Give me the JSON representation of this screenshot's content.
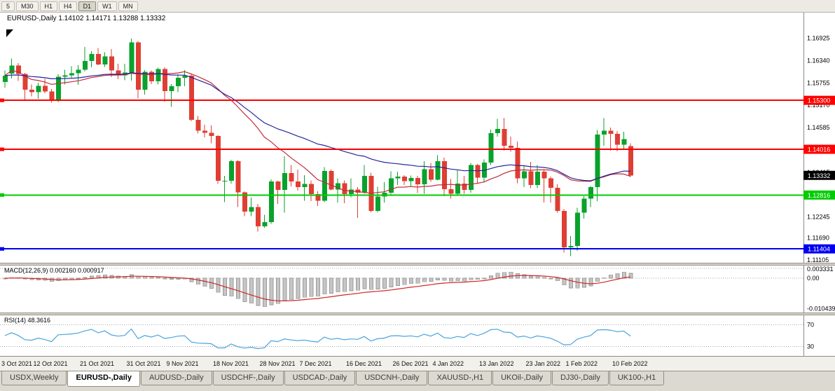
{
  "toolbar": {
    "timeframes": [
      "5",
      "M30",
      "H1",
      "H4",
      "D1",
      "W1",
      "MN"
    ],
    "active": "D1"
  },
  "chart_data": {
    "type": "candlestick",
    "title": "EURUSD-,Daily",
    "ohlc_text": "1.14102 1.14171 1.13288 1.13332",
    "up_color": "#09a22c",
    "down_color": "#df3e33",
    "ma_fast": {
      "period": 20,
      "color": "#c22b3a"
    },
    "ma_slow": {
      "period": 40,
      "color": "#24249e"
    },
    "ylim": [
      1.1104,
      1.176
    ],
    "yticks": [
      {
        "price": 1.16925,
        "label": "1.16925"
      },
      {
        "price": 1.1634,
        "label": "1.16340"
      },
      {
        "price": 1.15755,
        "label": "1.15755"
      },
      {
        "price": 1.1517,
        "label": "1.15170"
      },
      {
        "price": 1.14585,
        "label": "1.14585"
      },
      {
        "price": 1.14,
        "label": "1.14000"
      },
      {
        "price": 1.13415,
        "label": "1.13415"
      },
      {
        "price": 1.1283,
        "label": "1.12830"
      },
      {
        "price": 1.12245,
        "label": "1.12245"
      },
      {
        "price": 1.1169,
        "label": "1.11690"
      },
      {
        "price": 1.11105,
        "label": "1.11105"
      }
    ],
    "hlines": [
      {
        "price": 1.153,
        "label": "1.15300",
        "color": "#fe0000",
        "width": 2
      },
      {
        "price": 1.14016,
        "label": "1.14016",
        "color": "#fe0000",
        "width": 2
      },
      {
        "price": 1.12816,
        "label": "1.12816",
        "color": "#00cc00",
        "width": 2
      },
      {
        "price": 1.11404,
        "label": "1.11404",
        "color": "#0000f0",
        "width": 2
      }
    ],
    "price_badge": {
      "price": 1.13332,
      "label": "1.13332",
      "bg": "#000000"
    },
    "candles": [
      [
        1.1578,
        1.1608,
        1.1563,
        1.1595
      ],
      [
        1.16,
        1.164,
        1.1587,
        1.1621
      ],
      [
        1.1621,
        1.1628,
        1.1581,
        1.1599
      ],
      [
        1.1599,
        1.1602,
        1.1529,
        1.1558
      ],
      [
        1.1558,
        1.1572,
        1.154,
        1.1551
      ],
      [
        1.1551,
        1.1576,
        1.1534,
        1.1568
      ],
      [
        1.1568,
        1.1586,
        1.1549,
        1.1553
      ],
      [
        1.1553,
        1.156,
        1.1524,
        1.153
      ],
      [
        1.153,
        1.1598,
        1.1525,
        1.1592
      ],
      [
        1.1592,
        1.161,
        1.1572,
        1.1596
      ],
      [
        1.1596,
        1.1619,
        1.1588,
        1.1601
      ],
      [
        1.1601,
        1.1622,
        1.1571,
        1.161
      ],
      [
        1.161,
        1.167,
        1.1606,
        1.1633
      ],
      [
        1.1633,
        1.1659,
        1.1617,
        1.1652
      ],
      [
        1.1652,
        1.1667,
        1.1622,
        1.1624
      ],
      [
        1.1624,
        1.1656,
        1.1618,
        1.1645
      ],
      [
        1.1645,
        1.1664,
        1.1591,
        1.1608
      ],
      [
        1.1608,
        1.1626,
        1.1585,
        1.1596
      ],
      [
        1.1596,
        1.1626,
        1.1583,
        1.1603
      ],
      [
        1.1603,
        1.1692,
        1.1582,
        1.1682
      ],
      [
        1.1682,
        1.1686,
        1.1535,
        1.1558
      ],
      [
        1.1558,
        1.1609,
        1.1545,
        1.1605
      ],
      [
        1.1605,
        1.1608,
        1.1573,
        1.158
      ],
      [
        1.158,
        1.1616,
        1.1572,
        1.1612
      ],
      [
        1.1612,
        1.1617,
        1.1527,
        1.1554
      ],
      [
        1.1554,
        1.1573,
        1.1513,
        1.1567
      ],
      [
        1.1567,
        1.1598,
        1.1551,
        1.1589
      ],
      [
        1.1589,
        1.1609,
        1.1567,
        1.1595
      ],
      [
        1.1595,
        1.1598,
        1.1475,
        1.1479
      ],
      [
        1.1479,
        1.1489,
        1.1443,
        1.145
      ],
      [
        1.145,
        1.1466,
        1.1433,
        1.1445
      ],
      [
        1.1445,
        1.1464,
        1.1417,
        1.1437
      ],
      [
        1.1437,
        1.1438,
        1.1311,
        1.1319
      ],
      [
        1.1319,
        1.1332,
        1.1263,
        1.1319
      ],
      [
        1.1319,
        1.1374,
        1.1312,
        1.137
      ],
      [
        1.137,
        1.1373,
        1.125,
        1.1289
      ],
      [
        1.1289,
        1.1291,
        1.1226,
        1.1238
      ],
      [
        1.1238,
        1.1275,
        1.1226,
        1.125
      ],
      [
        1.125,
        1.1258,
        1.1186,
        1.12
      ],
      [
        1.12,
        1.123,
        1.1196,
        1.1211
      ],
      [
        1.1211,
        1.1323,
        1.1206,
        1.1317
      ],
      [
        1.1317,
        1.1319,
        1.1258,
        1.1295
      ],
      [
        1.1295,
        1.1383,
        1.1235,
        1.1339
      ],
      [
        1.1339,
        1.136,
        1.1304,
        1.1317
      ],
      [
        1.1317,
        1.1348,
        1.1293,
        1.1302
      ],
      [
        1.1302,
        1.1334,
        1.1267,
        1.1311
      ],
      [
        1.1311,
        1.132,
        1.1266,
        1.1284
      ],
      [
        1.1284,
        1.1291,
        1.1253,
        1.1267
      ],
      [
        1.1267,
        1.1355,
        1.1263,
        1.1345
      ],
      [
        1.1345,
        1.1348,
        1.1294,
        1.1296
      ],
      [
        1.1296,
        1.1325,
        1.1262,
        1.1313
      ],
      [
        1.1313,
        1.132,
        1.126,
        1.1284
      ],
      [
        1.1284,
        1.1325,
        1.1276,
        1.1296
      ],
      [
        1.1296,
        1.1302,
        1.1222,
        1.1288
      ],
      [
        1.1288,
        1.136,
        1.1285,
        1.1332
      ],
      [
        1.1332,
        1.134,
        1.1236,
        1.124
      ],
      [
        1.124,
        1.1303,
        1.1236,
        1.1278
      ],
      [
        1.1278,
        1.1315,
        1.1262,
        1.1288
      ],
      [
        1.1288,
        1.1344,
        1.1282,
        1.1325
      ],
      [
        1.1325,
        1.1343,
        1.1308,
        1.133
      ],
      [
        1.133,
        1.1334,
        1.1308,
        1.1318
      ],
      [
        1.1318,
        1.1333,
        1.1304,
        1.1326
      ],
      [
        1.1326,
        1.1332,
        1.1287,
        1.131
      ],
      [
        1.131,
        1.137,
        1.1285,
        1.1349
      ],
      [
        1.1349,
        1.1366,
        1.1316,
        1.1322
      ],
      [
        1.1322,
        1.1386,
        1.132,
        1.137
      ],
      [
        1.137,
        1.138,
        1.1279,
        1.1297
      ],
      [
        1.1297,
        1.1324,
        1.1272,
        1.1285
      ],
      [
        1.1285,
        1.1347,
        1.128,
        1.1312
      ],
      [
        1.1312,
        1.1332,
        1.1285,
        1.1295
      ],
      [
        1.1295,
        1.1366,
        1.1288,
        1.136
      ],
      [
        1.136,
        1.1363,
        1.1313,
        1.1327
      ],
      [
        1.1327,
        1.1375,
        1.1314,
        1.1367
      ],
      [
        1.1367,
        1.1453,
        1.136,
        1.1444
      ],
      [
        1.1444,
        1.1482,
        1.1435,
        1.1455
      ],
      [
        1.1455,
        1.1483,
        1.1398,
        1.1411
      ],
      [
        1.1411,
        1.1435,
        1.1395,
        1.1405
      ],
      [
        1.1405,
        1.1422,
        1.1313,
        1.1325
      ],
      [
        1.1325,
        1.1358,
        1.1302,
        1.1344
      ],
      [
        1.1344,
        1.1369,
        1.13,
        1.1308
      ],
      [
        1.1308,
        1.136,
        1.13,
        1.1343
      ],
      [
        1.1343,
        1.1349,
        1.1262,
        1.1325
      ],
      [
        1.1325,
        1.133,
        1.1262,
        1.1301
      ],
      [
        1.1301,
        1.131,
        1.1235,
        1.124
      ],
      [
        1.124,
        1.1245,
        1.1131,
        1.1144
      ],
      [
        1.1144,
        1.1174,
        1.1121,
        1.1148
      ],
      [
        1.1148,
        1.1248,
        1.1135,
        1.1235
      ],
      [
        1.1235,
        1.1279,
        1.122,
        1.1272
      ],
      [
        1.1272,
        1.1305,
        1.125,
        1.1302
      ],
      [
        1.1302,
        1.1452,
        1.1266,
        1.144
      ],
      [
        1.144,
        1.1483,
        1.1411,
        1.145
      ],
      [
        1.145,
        1.1459,
        1.1398,
        1.1442
      ],
      [
        1.1442,
        1.1449,
        1.1396,
        1.1414
      ],
      [
        1.1414,
        1.1448,
        1.1402,
        1.1428
      ],
      [
        1.14102,
        1.14171,
        1.13288,
        1.13332
      ]
    ],
    "date_labels": [
      {
        "label": "3 Oct 2021",
        "index": 1
      },
      {
        "label": "12 Oct 2021",
        "index": 7
      },
      {
        "label": "21 Oct 2021",
        "index": 14
      },
      {
        "label": "31 Oct 2021",
        "index": 21
      },
      {
        "label": "9 Nov 2021",
        "index": 27
      },
      {
        "label": "18 Nov 2021",
        "index": 34
      },
      {
        "label": "28 Nov 2021",
        "index": 41
      },
      {
        "label": "7 Dec 2021",
        "index": 47
      },
      {
        "label": "16 Dec 2021",
        "index": 54
      },
      {
        "label": "26 Dec 2021",
        "index": 61
      },
      {
        "label": "4 Jan 2022",
        "index": 67
      },
      {
        "label": "13 Jan 2022",
        "index": 74
      },
      {
        "label": "23 Jan 2022",
        "index": 81
      },
      {
        "label": "1 Feb 2022",
        "index": 87
      },
      {
        "label": "10 Feb 2022",
        "index": 94
      }
    ]
  },
  "macd": {
    "label": "MACD(12,26,9) 0.002160 0.000917",
    "value": 0.00216,
    "signal_value": 0.000917,
    "levels": [
      {
        "value": 0.003331,
        "label": "0.003331"
      },
      {
        "value": 0,
        "label": "0.00"
      }
    ],
    "min_level": {
      "value": -0.010439,
      "label": "-0.010439"
    },
    "ylim": [
      -0.0117,
      0.0043
    ],
    "hist_color": "#c6c6c6",
    "hist_stroke": "#9b9b9b",
    "signal_color": "#cf2626"
  },
  "rsi": {
    "label": "RSI(14) 48.3616",
    "value": 48.3616,
    "levels": [
      {
        "value": 70,
        "label": "70"
      },
      {
        "value": 30,
        "label": "30"
      }
    ],
    "ylim": [
      12,
      88
    ],
    "line_color": "#4aa3dc"
  },
  "tabs": [
    "USDX,Weekly",
    "EURUSD-,Daily",
    "AUDUSD-,Daily",
    "USDCHF-,Daily",
    "USDCAD-,Daily",
    "USDCNH-,Daily",
    "XAUUSD-,H1",
    "UKOil-,Daily",
    "DJ30-,Daily",
    "UK100-,H1"
  ],
  "active_tab": "EURUSD-,Daily"
}
